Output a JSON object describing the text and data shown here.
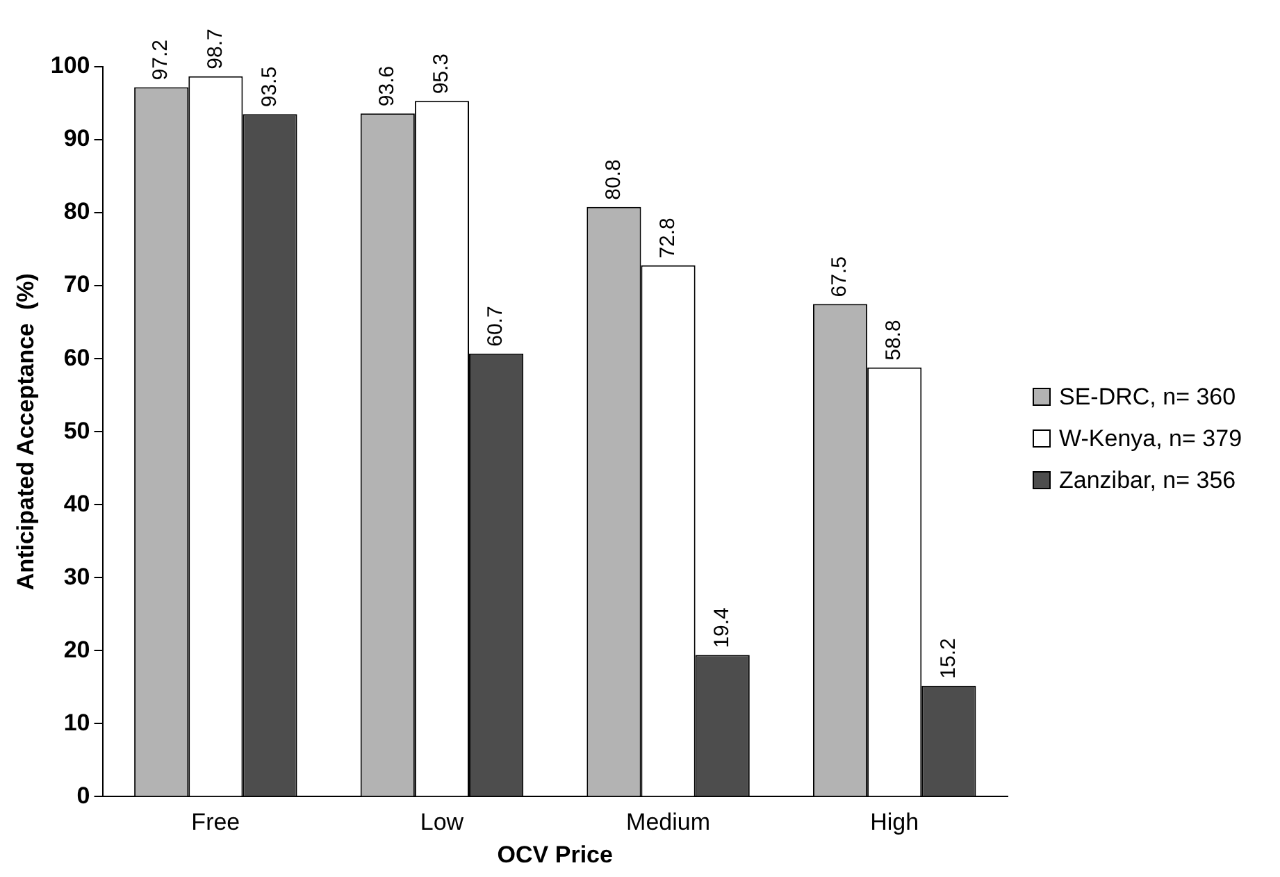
{
  "chart_data": {
    "type": "bar",
    "xlabel": "OCV Price",
    "ylabel": "Anticipated Acceptance  (%)",
    "categories": [
      "Free",
      "Low",
      "Medium",
      "High"
    ],
    "series": [
      {
        "name": "SE-DRC, n= 360",
        "color": "#b3b3b3",
        "values": [
          97.2,
          93.6,
          80.8,
          67.5
        ]
      },
      {
        "name": "W-Kenya, n= 379",
        "color": "#ffffff",
        "values": [
          98.7,
          95.3,
          72.8,
          58.8
        ]
      },
      {
        "name": "Zanzibar, n= 356",
        "color": "#4d4d4d",
        "values": [
          93.5,
          60.7,
          19.4,
          15.2
        ]
      }
    ],
    "ylim": [
      0,
      100
    ],
    "yticks": [
      0,
      10,
      20,
      30,
      40,
      50,
      60,
      70,
      80,
      90,
      100
    ],
    "grid": false,
    "legend": "right",
    "data_labels": true
  }
}
